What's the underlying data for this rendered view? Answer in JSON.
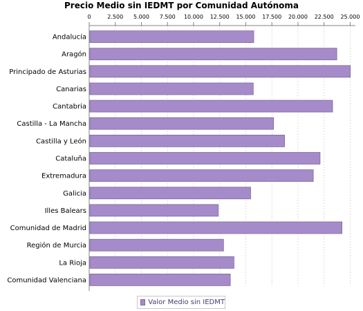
{
  "colors": {
    "bar_fill": "#a68bcb",
    "bar_stroke": "#7d6a96",
    "grid": "#d4d4d4",
    "axis": "#808080"
  },
  "chart_data": {
    "type": "bar",
    "orientation": "horizontal",
    "title": "Precio Medio sin IEDMT por Comunidad Autónoma",
    "xlabel": "",
    "ylabel": "",
    "xlim": [
      0,
      25500
    ],
    "x_ticks": [
      0,
      2500,
      5000,
      7500,
      10000,
      12500,
      15000,
      17500,
      20000,
      22500,
      25000
    ],
    "x_tick_labels": [
      "0",
      "2.500",
      "5.000",
      "7.500",
      "10.000",
      "12.500",
      "15.000",
      "17.500",
      "20.000",
      "22.500",
      "25.000"
    ],
    "x_axis_position": "top",
    "grid": true,
    "legend_position": "bottom",
    "categories": [
      "Andalucía",
      "Aragón",
      "Principado de Asturias",
      "Canarias",
      "Cantabria",
      "Castilla - La Mancha",
      "Castilla y León",
      "Cataluña",
      "Extremadura",
      "Galicia",
      "Illes Balears",
      "Comunidad de Madrid",
      "Región de Murcia",
      "La Rioja",
      "Comunidad Valenciana"
    ],
    "series": [
      {
        "name": "Valor Medio sin IEDMT",
        "values": [
          15700,
          23650,
          24950,
          15650,
          23250,
          17600,
          18650,
          22050,
          21400,
          15400,
          12300,
          24150,
          12800,
          13800,
          13450
        ]
      }
    ]
  }
}
